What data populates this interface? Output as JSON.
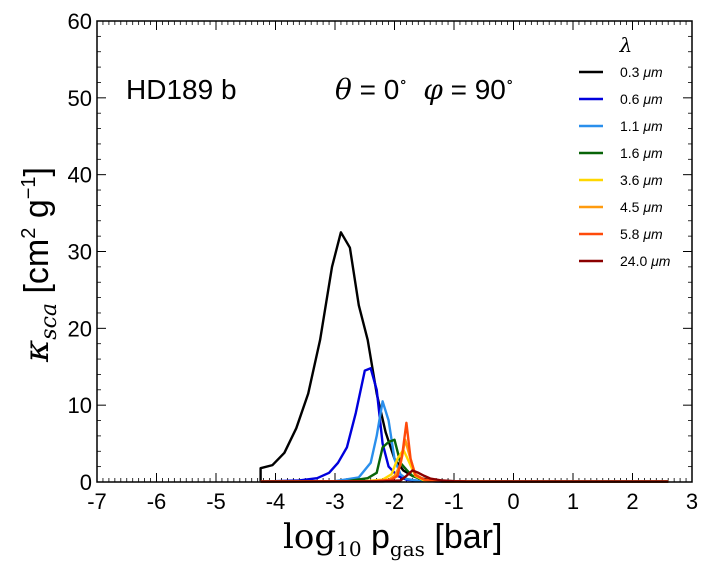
{
  "chart_data": {
    "type": "line",
    "annotation": "HD189 b",
    "angle_label": {
      "theta_symbol": "θ",
      "theta_text": " = 0",
      "phi_symbol": "φ",
      "phi_text": " = 90",
      "degree": "∘"
    },
    "xlabel": {
      "prefix": "log",
      "sub10": "10",
      "p": " p",
      "sub": "gas",
      "unit": " [bar]"
    },
    "ylabel": {
      "kappa": "κ",
      "sub": "sca",
      "open": " [cm",
      "sup2": "2",
      "g": " g",
      "supm1": "−1",
      "close": "]"
    },
    "xlim": [
      -7,
      3
    ],
    "ylim": [
      0,
      60
    ],
    "xticks": [
      -7,
      -6,
      -5,
      -4,
      -3,
      -2,
      -1,
      0,
      1,
      2,
      3
    ],
    "yticks": [
      0,
      10,
      20,
      30,
      40,
      50,
      60
    ],
    "legend": {
      "title": "λ",
      "position": "top-right"
    },
    "series": [
      {
        "name": "0.3",
        "unit": " μm",
        "color": "#000000",
        "x": [
          -4.25,
          -4.25,
          -4.05,
          -3.85,
          -3.65,
          -3.45,
          -3.25,
          -3.05,
          -2.9,
          -2.75,
          -2.6,
          -2.45,
          -2.3,
          -2.15,
          -2.0,
          -1.85,
          -1.7,
          -1.5,
          -1.3,
          -1.0,
          0,
          1,
          2,
          2.6
        ],
        "y": [
          0.1,
          1.8,
          2.2,
          3.8,
          7.0,
          11.5,
          18.5,
          28.0,
          32.5,
          30.5,
          23.0,
          18.5,
          11.5,
          6.5,
          3.0,
          1.5,
          0.8,
          0.4,
          0.2,
          0.1,
          0.08,
          0.07,
          0.06,
          0.06
        ]
      },
      {
        "name": "0.6",
        "unit": " μm",
        "color": "#0000dd",
        "x": [
          -4.25,
          -3.6,
          -3.3,
          -3.1,
          -2.95,
          -2.8,
          -2.65,
          -2.5,
          -2.4,
          -2.3,
          -2.2,
          -2.1,
          -1.95,
          -1.8,
          -1.6,
          -1.3,
          -1,
          0,
          1,
          2,
          2.6
        ],
        "y": [
          0.05,
          0.2,
          0.5,
          1.2,
          2.5,
          4.5,
          9.0,
          14.5,
          14.8,
          12.0,
          5.0,
          2.0,
          0.8,
          0.3,
          0.15,
          0.08,
          0.06,
          0.05,
          0.05,
          0.05,
          0.05
        ]
      },
      {
        "name": "1.1",
        "unit": " μm",
        "color": "#2a8fec",
        "x": [
          -4.25,
          -3.0,
          -2.6,
          -2.4,
          -2.3,
          -2.2,
          -2.1,
          -2.0,
          -1.9,
          -1.8,
          -1.6,
          -1.3,
          -1,
          0,
          1,
          2,
          2.6
        ],
        "y": [
          0.05,
          0.1,
          0.6,
          2.5,
          6.0,
          10.5,
          8.0,
          3.0,
          1.0,
          0.4,
          0.15,
          0.08,
          0.06,
          0.05,
          0.05,
          0.05,
          0.05
        ]
      },
      {
        "name": "1.6",
        "unit": " μm",
        "color": "#086408",
        "x": [
          -4.25,
          -2.8,
          -2.45,
          -2.3,
          -2.2,
          -2.1,
          -2.0,
          -1.9,
          -1.8,
          -1.7,
          -1.5,
          -1.2,
          -1,
          0,
          1,
          2,
          2.6
        ],
        "y": [
          0.05,
          0.1,
          0.5,
          1.2,
          4.5,
          5.2,
          5.5,
          2.5,
          1.6,
          0.8,
          0.2,
          0.08,
          0.06,
          0.05,
          0.05,
          0.05,
          0.05
        ]
      },
      {
        "name": "3.6",
        "unit": " μm",
        "color": "#ffd700",
        "x": [
          -4.25,
          -2.5,
          -2.2,
          -2.05,
          -1.95,
          -1.85,
          -1.75,
          -1.65,
          -1.5,
          -1.2,
          -1,
          0,
          1,
          2,
          2.6
        ],
        "y": [
          0.05,
          0.1,
          0.3,
          1.0,
          3.0,
          4.2,
          2.5,
          0.8,
          0.2,
          0.08,
          0.06,
          0.05,
          0.05,
          0.05,
          0.05
        ]
      },
      {
        "name": "4.5",
        "unit": " μm",
        "color": "#ff9b0f",
        "x": [
          -4.25,
          -2.4,
          -2.1,
          -2.0,
          -1.9,
          -1.82,
          -1.75,
          -1.65,
          -1.5,
          -1.2,
          -1,
          0,
          1,
          2,
          2.6
        ],
        "y": [
          0.05,
          0.1,
          0.3,
          0.8,
          2.2,
          5.5,
          3.5,
          1.0,
          0.3,
          0.08,
          0.06,
          0.05,
          0.05,
          0.05,
          0.05
        ]
      },
      {
        "name": "5.8",
        "unit": " μm",
        "color": "#ff4a0a",
        "x": [
          -4.25,
          -2.3,
          -2.05,
          -1.95,
          -1.87,
          -1.8,
          -1.73,
          -1.65,
          -1.5,
          -1.2,
          -1,
          0,
          1,
          2,
          2.6
        ],
        "y": [
          0.05,
          0.1,
          0.3,
          0.8,
          3.5,
          7.7,
          3.0,
          0.9,
          0.3,
          0.08,
          0.06,
          0.05,
          0.05,
          0.05,
          0.05
        ]
      },
      {
        "name": "24.0",
        "unit": " μm",
        "color": "#8b0000",
        "x": [
          -4.25,
          -2.2,
          -1.9,
          -1.8,
          -1.7,
          -1.6,
          -1.5,
          -1.4,
          -1.2,
          -1.0,
          -0.8,
          0,
          1,
          2,
          2.6
        ],
        "y": [
          0.05,
          0.08,
          0.2,
          0.8,
          1.5,
          1.2,
          0.8,
          0.45,
          0.2,
          0.1,
          0.06,
          0.05,
          0.05,
          0.05,
          0.05
        ]
      }
    ]
  }
}
